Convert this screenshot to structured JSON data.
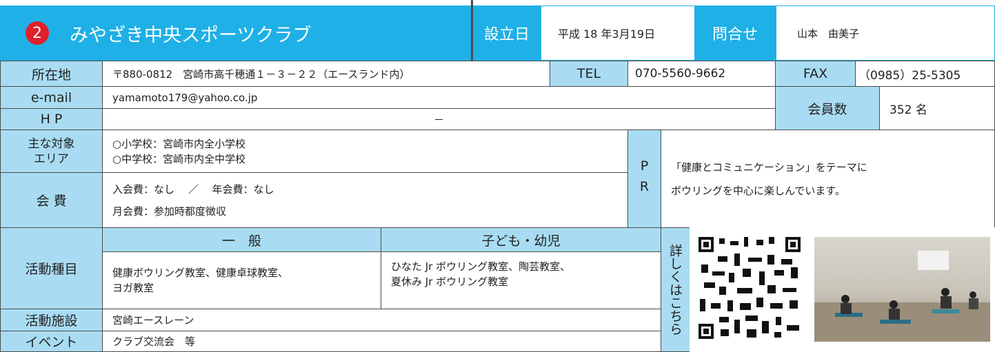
{
  "header": {
    "number": "2",
    "title": "みやざき中央スポーツクラブ",
    "established_label": "設立日",
    "established": "平成 18 年3月19日",
    "contact_label": "問合せ",
    "contact": "山本　由美子"
  },
  "table": {
    "address": {
      "label": "所在地",
      "value": "〒880-0812　宮崎市高千穂通１－３－２２（エースランド内）"
    },
    "tel": {
      "label": "TEL",
      "value": "070-5560-9662"
    },
    "fax": {
      "label": "FAX",
      "value": "（0985）25-5305"
    },
    "email": {
      "label": "e-mail",
      "value": "yamamoto179@yahoo.co.jp"
    },
    "hp": {
      "label": "H P",
      "value": "－"
    },
    "members": {
      "label": "会員数",
      "value": "352 名"
    },
    "area": {
      "label": [
        "主な対象",
        "エリア"
      ],
      "value": [
        "○小学校：宮崎市内全小学校",
        "○中学校：宮崎市内全中学校"
      ]
    },
    "fee": {
      "label": "会 費",
      "value": [
        "入会費：なし　 ／　 年会費：なし",
        "月会費：参加時都度徴収"
      ]
    },
    "pr": {
      "label": "PR",
      "value": [
        "「健康とコミュニケーション」をテーマに",
        "ボウリングを中心に楽しんでいます。"
      ]
    },
    "activities": {
      "label": "活動種目",
      "general_label": "一　般",
      "general": [
        "健康ボウリング教室、健康卓球教室、",
        "ヨガ教室"
      ],
      "kids_label": "子ども・幼児",
      "kids": [
        "ひなた Jr ボウリング教室、陶芸教室、",
        "夏休み Jr ボウリング教室"
      ]
    },
    "facility": {
      "label": "活動施設",
      "value": "宮崎エースレーン"
    },
    "event": {
      "label": "イベント",
      "value": "クラブ交流会　等"
    },
    "details_label": "詳しくはこちら"
  }
}
